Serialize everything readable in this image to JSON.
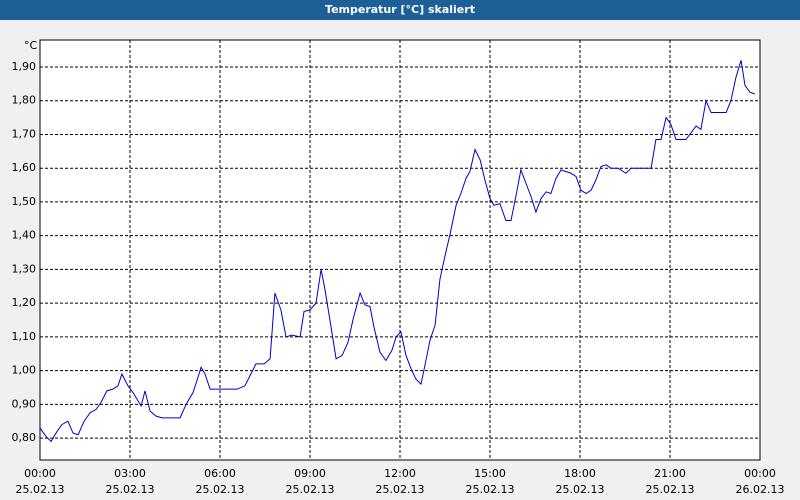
{
  "chart_data": {
    "type": "line",
    "title": "Temperatur [°C] skaliert",
    "y_unit": "°C",
    "x": [
      0,
      0.2,
      0.37,
      0.57,
      0.73,
      0.93,
      1.1,
      1.27,
      1.47,
      1.67,
      1.87,
      2.03,
      2.23,
      2.43,
      2.6,
      2.73,
      2.93,
      3.1,
      3.37,
      3.5,
      3.67,
      3.87,
      4.07,
      4.33,
      4.67,
      4.87,
      5.1,
      5.23,
      5.37,
      5.5,
      5.67,
      5.8,
      6.07,
      6.33,
      6.57,
      6.83,
      7.03,
      7.2,
      7.47,
      7.67,
      7.83,
      8.03,
      8.2,
      8.4,
      8.67,
      8.8,
      9,
      9.2,
      9.37,
      9.5,
      9.7,
      9.87,
      10.07,
      10.27,
      10.43,
      10.67,
      10.83,
      11,
      11.13,
      11.33,
      11.53,
      11.73,
      11.87,
      12.03,
      12.2,
      12.37,
      12.53,
      12.7,
      12.83,
      13,
      13.17,
      13.33,
      13.5,
      13.67,
      13.87,
      14.03,
      14.2,
      14.33,
      14.5,
      14.67,
      14.83,
      15,
      15.13,
      15.33,
      15.53,
      15.7,
      15.87,
      16.03,
      16.2,
      16.37,
      16.53,
      16.7,
      16.87,
      17.03,
      17.2,
      17.37,
      17.7,
      17.87,
      18.03,
      18.2,
      18.37,
      18.53,
      18.7,
      18.87,
      19.03,
      19.27,
      19.53,
      19.7,
      20.37,
      20.53,
      20.7,
      20.87,
      21.03,
      21.2,
      21.53,
      21.7,
      21.87,
      22.03,
      22.2,
      22.37,
      22.7,
      22.87,
      23.03,
      23.2,
      23.37,
      23.5,
      23.67,
      23.83
    ],
    "series": [
      {
        "color": "#0000c8",
        "values": [
          0.83,
          0.805,
          0.79,
          0.82,
          0.84,
          0.85,
          0.815,
          0.81,
          0.85,
          0.875,
          0.885,
          0.905,
          0.94,
          0.945,
          0.955,
          0.99,
          0.955,
          0.935,
          0.895,
          0.94,
          0.88,
          0.865,
          0.86,
          0.86,
          0.86,
          0.9,
          0.935,
          0.97,
          1.01,
          0.99,
          0.945,
          0.945,
          0.945,
          0.945,
          0.945,
          0.955,
          0.99,
          1.02,
          1.02,
          1.035,
          1.23,
          1.18,
          1.1,
          1.105,
          1.1,
          1.175,
          1.18,
          1.2,
          1.3,
          1.24,
          1.13,
          1.035,
          1.045,
          1.085,
          1.15,
          1.23,
          1.195,
          1.19,
          1.13,
          1.055,
          1.03,
          1.06,
          1.1,
          1.115,
          1.045,
          1.005,
          0.975,
          0.96,
          1.015,
          1.09,
          1.135,
          1.27,
          1.34,
          1.405,
          1.49,
          1.525,
          1.57,
          1.59,
          1.655,
          1.625,
          1.565,
          1.51,
          1.49,
          1.495,
          1.445,
          1.445,
          1.52,
          1.595,
          1.555,
          1.515,
          1.47,
          1.51,
          1.53,
          1.525,
          1.57,
          1.595,
          1.585,
          1.575,
          1.535,
          1.525,
          1.535,
          1.565,
          1.605,
          1.61,
          1.6,
          1.6,
          1.585,
          1.6,
          1.6,
          1.685,
          1.685,
          1.75,
          1.73,
          1.685,
          1.685,
          1.705,
          1.725,
          1.715,
          1.8,
          1.765,
          1.765,
          1.765,
          1.8,
          1.87,
          1.92,
          1.845,
          1.825,
          1.82
        ]
      }
    ],
    "xlim": [
      0,
      24
    ],
    "xticks": [
      {
        "value": 0,
        "label": "00:00",
        "date": "25.02.13"
      },
      {
        "value": 3,
        "label": "03:00",
        "date": "25.02.13"
      },
      {
        "value": 6,
        "label": "06:00",
        "date": "25.02.13"
      },
      {
        "value": 9,
        "label": "09:00",
        "date": "25.02.13"
      },
      {
        "value": 12,
        "label": "12:00",
        "date": "25.02.13"
      },
      {
        "value": 15,
        "label": "15:00",
        "date": "25.02.13"
      },
      {
        "value": 18,
        "label": "18:00",
        "date": "25.02.13"
      },
      {
        "value": 21,
        "label": "21:00",
        "date": "25.02.13"
      },
      {
        "value": 24,
        "label": "00:00",
        "date": "26.02.13"
      }
    ],
    "ylim": [
      0.735,
      1.98
    ],
    "yticks": [
      {
        "value": 0.8,
        "label": "0,80"
      },
      {
        "value": 0.9,
        "label": "0,90"
      },
      {
        "value": 1.0,
        "label": "1,00"
      },
      {
        "value": 1.1,
        "label": "1,10"
      },
      {
        "value": 1.2,
        "label": "1,20"
      },
      {
        "value": 1.3,
        "label": "1,30"
      },
      {
        "value": 1.4,
        "label": "1,40"
      },
      {
        "value": 1.5,
        "label": "1,50"
      },
      {
        "value": 1.6,
        "label": "1,60"
      },
      {
        "value": 1.7,
        "label": "1,70"
      },
      {
        "value": 1.8,
        "label": "1,80"
      },
      {
        "value": 1.9,
        "label": "1,90"
      }
    ],
    "grid": true
  }
}
